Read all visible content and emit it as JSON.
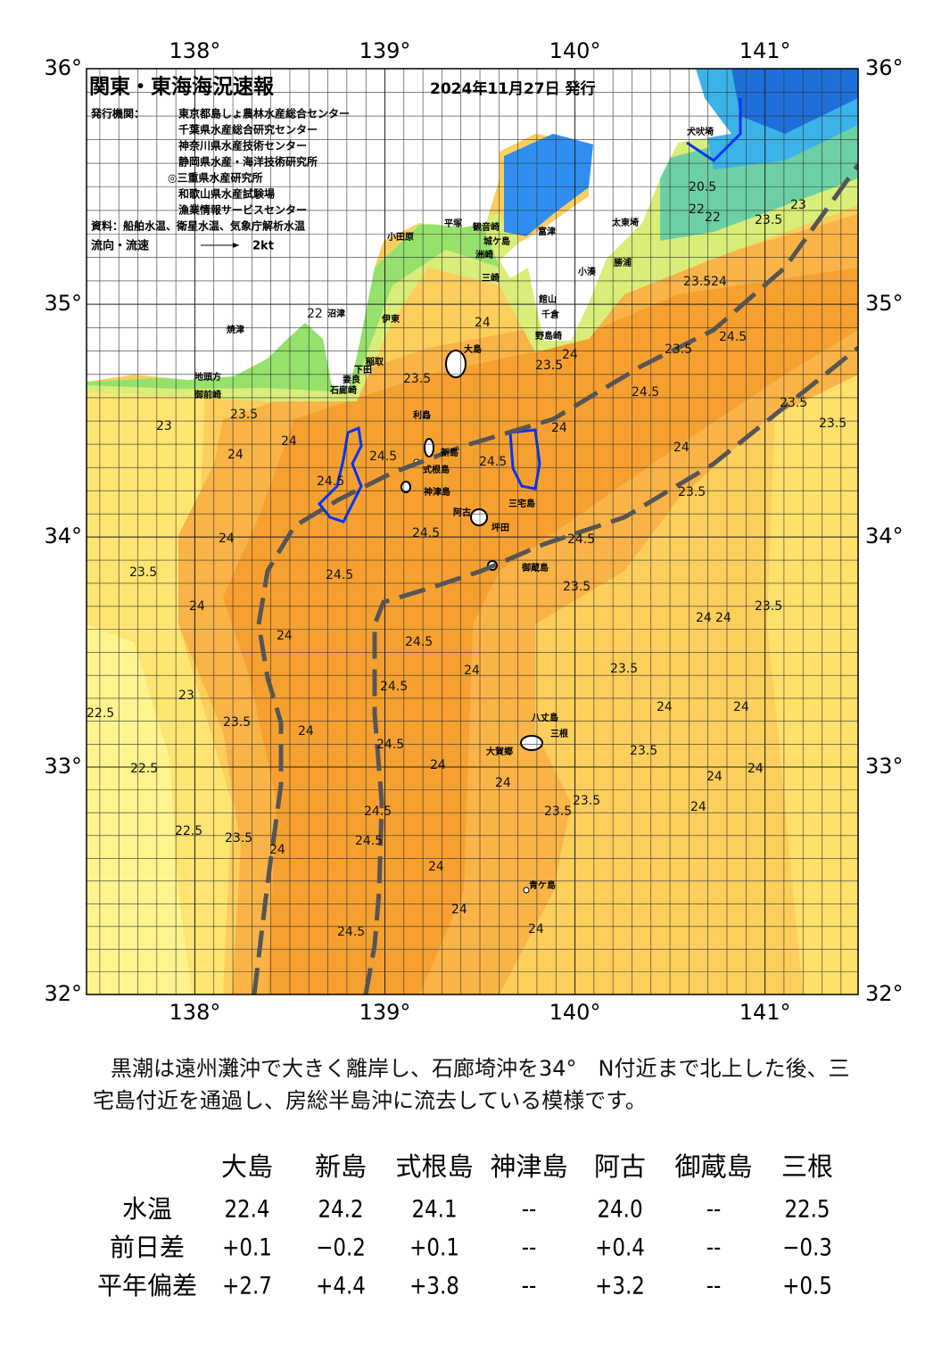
{
  "header": {
    "title": "関東・東海海況速報",
    "date": "2024年11月27日 発行",
    "issuer_label": "発行機関：",
    "issuers": [
      "東京都島しょ農林水産総合センター",
      "千葉県水産総合研究センター",
      "神奈川県水産技術センター",
      "静岡県水産・海洋技術研究所",
      "◎三重県水産研究所",
      "和歌山県水産試験場",
      "漁業情報サービスセンター"
    ],
    "source": "資料：船舶水温、衛星水温、気象庁解析水温",
    "flow_label": "流向・流速",
    "flow_scale": "2kt"
  },
  "map": {
    "lon_range": [
      137.43,
      141.49
    ],
    "lat_range": [
      32,
      36
    ],
    "lon_ticks": [
      {
        "value": 138,
        "label": "138°"
      },
      {
        "value": 139,
        "label": "139°"
      },
      {
        "value": 140,
        "label": "140°"
      },
      {
        "value": 141,
        "label": "141°"
      }
    ],
    "lat_ticks": [
      {
        "value": 32,
        "label": "32°"
      },
      {
        "value": 33,
        "label": "33°"
      },
      {
        "value": 34,
        "label": "34°"
      },
      {
        "value": 35,
        "label": "35°"
      },
      {
        "value": 36,
        "label": "36°"
      }
    ],
    "places": [
      "犬吠埼",
      "太東埼",
      "勝浦",
      "小湊",
      "館山",
      "千倉",
      "野島崎",
      "小田原",
      "平塚",
      "観音崎",
      "富津",
      "城ケ島",
      "洲崎",
      "三崎",
      "伊東",
      "沼津",
      "稲取",
      "下田",
      "妻良",
      "石廊崎",
      "焼津",
      "地頭方",
      "御前崎",
      "大島",
      "利島",
      "新島",
      "式根島",
      "神津島",
      "三宅島",
      "阿古",
      "坪田",
      "御蔵島",
      "八丈島",
      "三根",
      "大賀郷",
      "青ケ島"
    ],
    "contour_labels": [
      "22",
      "23.5",
      "23.5",
      "23",
      "24",
      "24",
      "24.5",
      "24.5",
      "24.5",
      "24",
      "23.5",
      "24",
      "24.5",
      "24",
      "24.5",
      "23.5",
      "24",
      "23.5",
      "23.5",
      "23.5",
      "24",
      "23.5",
      "24.5",
      "24.5",
      "23.5",
      "24.5",
      "24",
      "24",
      "24.5",
      "24",
      "23.5",
      "24",
      "24",
      "23.5",
      "23",
      "22.5",
      "23.5",
      "24.5",
      "24",
      "24.5",
      "24",
      "23.5",
      "24",
      "24",
      "22.5",
      "24",
      "23.5",
      "23.5",
      "24",
      "24",
      "24",
      "22.5",
      "23.5",
      "24.5",
      "24.5",
      "24",
      "24",
      "24",
      "24.5",
      "24",
      "22",
      "23.5",
      "20.5",
      "22",
      "23",
      "24",
      "23.5"
    ]
  },
  "comment": [
    "黒潮は遠州灘沖で大きく離岸し、石廊埼沖を34°　N付近まで北上した後、三",
    "宅島付近を通過し、房総半島沖に流去している模様です。"
  ],
  "table": {
    "columns": [
      "大島",
      "新島",
      "式根島",
      "神津島",
      "阿古",
      "御蔵島",
      "三根"
    ],
    "rows": [
      {
        "label": "水温",
        "values": [
          "22.4",
          "24.2",
          "24.1",
          "--",
          "24.0",
          "--",
          "22.5"
        ]
      },
      {
        "label": "前日差",
        "values": [
          "+0.1",
          "−0.2",
          "+0.1",
          "--",
          "+0.4",
          "--",
          "−0.3"
        ]
      },
      {
        "label": "平年偏差",
        "values": [
          "+2.7",
          "+4.4",
          "+3.8",
          "--",
          "+3.2",
          "--",
          "+0.5"
        ]
      }
    ]
  }
}
